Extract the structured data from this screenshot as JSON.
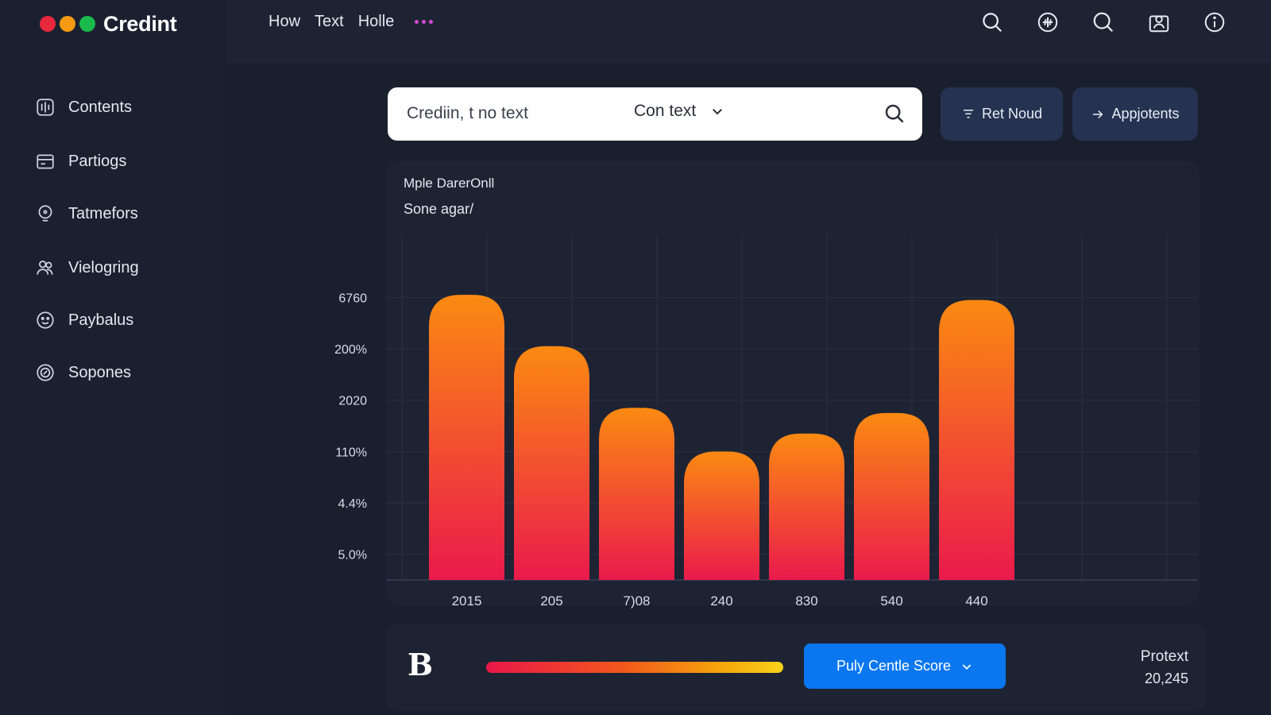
{
  "app": {
    "name": "Credint",
    "window_dots": [
      "#e8283d",
      "#f59a12",
      "#1bbb4b"
    ]
  },
  "topnav": {
    "links": [
      "How",
      "Text",
      "Holle"
    ],
    "more_icon": "more-dots-icon",
    "icons": [
      "search-icon",
      "add-circle-icon",
      "search-icon",
      "user-badge-icon",
      "info-icon"
    ]
  },
  "sidebar": {
    "items": [
      {
        "label": "Contents",
        "icon": "contents-icon"
      },
      {
        "label": "Partiogs",
        "icon": "card-icon"
      },
      {
        "label": "Tatmefors",
        "icon": "chat-icon"
      },
      {
        "label": "Vielogring",
        "icon": "users-icon"
      },
      {
        "label": "Paybalus",
        "icon": "smile-icon"
      },
      {
        "label": "Sopones",
        "icon": "coin-icon"
      }
    ]
  },
  "search": {
    "value": "Crediin, t no text",
    "context_label": "Con text"
  },
  "actions": {
    "filter_label": "Ret Noud",
    "applicants_label": "Appjotents"
  },
  "chart_data": {
    "type": "bar",
    "title": "Mple DarerOnll",
    "subtitle": "Sone agar/",
    "categories": [
      "2015",
      "205",
      "7)08",
      "240",
      "830",
      "540",
      "440"
    ],
    "values": [
      5.55,
      4.55,
      3.35,
      2.5,
      2.85,
      3.25,
      5.45
    ],
    "ytick_labels": [
      "5.0%",
      "4.4%",
      "110%",
      "2020",
      "200%",
      "6760"
    ],
    "ylim": [
      0,
      6
    ],
    "grid": true,
    "colors": {
      "bar_top": "#fb8a11",
      "bar_bottom": "#ea1a4c",
      "grid": "#2b3142"
    }
  },
  "footer": {
    "logo": "B",
    "score_label": "Puly Centle Score",
    "protext_label": "Protext",
    "protext_value": "20,245",
    "accent": "#0a77f0"
  }
}
